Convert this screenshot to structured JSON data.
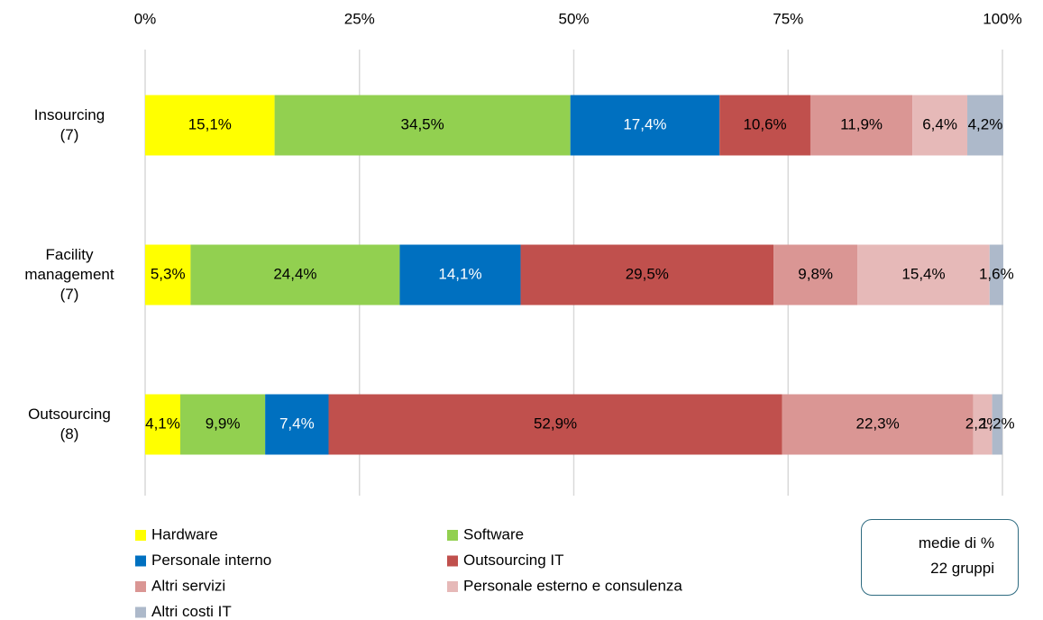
{
  "chart_data": {
    "type": "stacked-bar-horizontal",
    "categories": [
      "Insourcing\n(7)",
      "Facility\nmanagement\n(7)",
      "Outsourcing\n(8)"
    ],
    "series": [
      {
        "name": "Hardware",
        "color": "#ffff00",
        "label_color": "#000000",
        "values": [
          15.1,
          5.3,
          4.1
        ],
        "value_labels": [
          "15,1%",
          "5,3%",
          "4,1%"
        ]
      },
      {
        "name": "Software",
        "color": "#92d050",
        "label_color": "#000000",
        "values": [
          34.5,
          24.4,
          9.9
        ],
        "value_labels": [
          "34,5%",
          "24,4%",
          "9,9%"
        ]
      },
      {
        "name": "Personale interno",
        "color": "#0070c0",
        "label_color": "#ffffff",
        "values": [
          17.4,
          14.1,
          7.4
        ],
        "value_labels": [
          "17,4%",
          "14,1%",
          "7,4%"
        ]
      },
      {
        "name": "Outsourcing IT",
        "color": "#c0504d",
        "label_color": "#000000",
        "values": [
          10.6,
          29.5,
          52.9
        ],
        "value_labels": [
          "10,6%",
          "29,5%",
          "52,9%"
        ]
      },
      {
        "name": "Altri servizi",
        "color": "#da9694",
        "label_color": "#000000",
        "values": [
          11.9,
          9.8,
          22.3
        ],
        "value_labels": [
          "11,9%",
          "9,8%",
          "22,3%"
        ]
      },
      {
        "name": "Personale esterno e consulenza",
        "color": "#e6b9b8",
        "label_color": "#000000",
        "values": [
          6.4,
          15.4,
          2.2
        ],
        "value_labels": [
          "6,4%",
          "15,4%",
          "2,2%"
        ]
      },
      {
        "name": "Altri costi IT",
        "color": "#adb9ca",
        "label_color": "#000000",
        "values": [
          4.2,
          1.6,
          1.2
        ],
        "value_labels": [
          "4,2%",
          "1,6%",
          "1,2%"
        ]
      }
    ],
    "xlim": [
      0,
      100
    ],
    "xticks": [
      {
        "value": 0,
        "label": "0%"
      },
      {
        "value": 25,
        "label": "25%"
      },
      {
        "value": 50,
        "label": "50%"
      },
      {
        "value": 75,
        "label": "75%"
      },
      {
        "value": 100,
        "label": "100%"
      }
    ],
    "grid": true,
    "legend": "bottom",
    "annotation": "medie di %\n22 gruppi"
  }
}
